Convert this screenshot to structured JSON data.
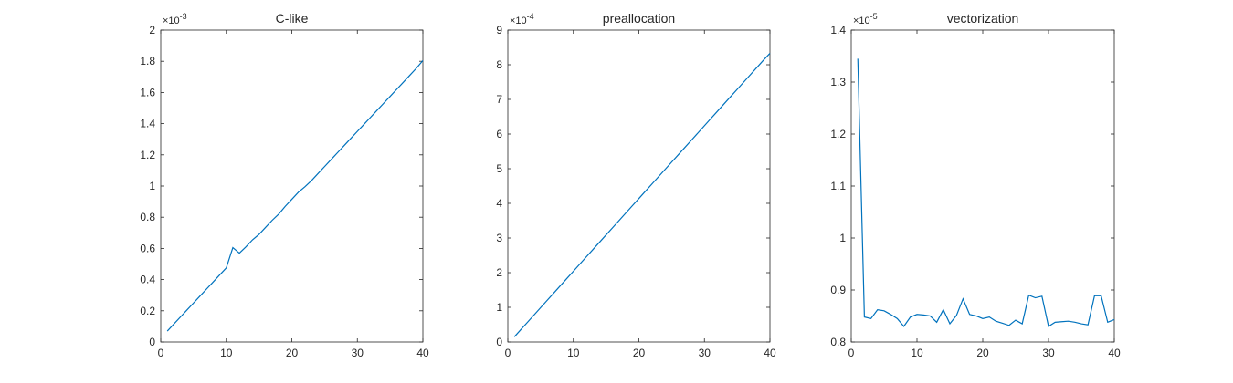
{
  "line_color": "#0072BD",
  "chart_data": [
    {
      "type": "line",
      "title": "C-like",
      "xlabel": "",
      "ylabel": "",
      "xlim": [
        0,
        40
      ],
      "ylim": [
        0,
        2
      ],
      "xticks": [
        0,
        10,
        20,
        30,
        40
      ],
      "xtick_labels": [
        "0",
        "10",
        "20",
        "30",
        "40"
      ],
      "yticks": [
        0,
        0.2,
        0.4,
        0.6,
        0.8,
        1,
        1.2,
        1.4,
        1.6,
        1.8,
        2
      ],
      "ytick_labels": [
        "0",
        "0.2",
        "0.4",
        "0.6",
        "0.8",
        "1",
        "1.2",
        "1.4",
        "1.6",
        "1.8",
        "2"
      ],
      "y_exponent_base": "×10",
      "y_exponent_power": "-3",
      "grid": false,
      "x": [
        1,
        2,
        3,
        4,
        5,
        6,
        7,
        8,
        9,
        10,
        11,
        12,
        13,
        14,
        15,
        16,
        17,
        18,
        19,
        20,
        21,
        22,
        23,
        24,
        25,
        26,
        27,
        28,
        29,
        30,
        31,
        32,
        33,
        34,
        35,
        36,
        37,
        38,
        39,
        40
      ],
      "values": [
        0.07,
        0.115,
        0.16,
        0.205,
        0.25,
        0.295,
        0.34,
        0.385,
        0.43,
        0.475,
        0.605,
        0.57,
        0.61,
        0.655,
        0.69,
        0.735,
        0.78,
        0.82,
        0.87,
        0.915,
        0.96,
        0.995,
        1.035,
        1.08,
        1.125,
        1.17,
        1.215,
        1.26,
        1.305,
        1.35,
        1.395,
        1.44,
        1.485,
        1.53,
        1.575,
        1.62,
        1.665,
        1.71,
        1.755,
        1.805
      ]
    },
    {
      "type": "line",
      "title": "preallocation",
      "xlabel": "",
      "ylabel": "",
      "xlim": [
        0,
        40
      ],
      "ylim": [
        0,
        9
      ],
      "xticks": [
        0,
        10,
        20,
        30,
        40
      ],
      "xtick_labels": [
        "0",
        "10",
        "20",
        "30",
        "40"
      ],
      "yticks": [
        0,
        1,
        2,
        3,
        4,
        5,
        6,
        7,
        8,
        9
      ],
      "ytick_labels": [
        "0",
        "1",
        "2",
        "3",
        "4",
        "5",
        "6",
        "7",
        "8",
        "9"
      ],
      "y_exponent_base": "×10",
      "y_exponent_power": "-4",
      "grid": false,
      "x": [
        1,
        2,
        3,
        4,
        5,
        6,
        7,
        8,
        9,
        10,
        11,
        12,
        13,
        14,
        15,
        16,
        17,
        18,
        19,
        20,
        21,
        22,
        23,
        24,
        25,
        26,
        27,
        28,
        29,
        30,
        31,
        32,
        33,
        34,
        35,
        36,
        37,
        38,
        39,
        40
      ],
      "values": [
        0.15,
        0.36,
        0.57,
        0.78,
        0.99,
        1.2,
        1.41,
        1.62,
        1.83,
        2.04,
        2.25,
        2.46,
        2.67,
        2.88,
        3.09,
        3.3,
        3.51,
        3.72,
        3.93,
        4.14,
        4.35,
        4.56,
        4.77,
        4.98,
        5.19,
        5.4,
        5.61,
        5.82,
        6.03,
        6.24,
        6.45,
        6.66,
        6.87,
        7.08,
        7.29,
        7.5,
        7.71,
        7.92,
        8.13,
        8.33
      ]
    },
    {
      "type": "line",
      "title": "vectorization",
      "xlabel": "",
      "ylabel": "",
      "xlim": [
        0,
        40
      ],
      "ylim": [
        0.8,
        1.4
      ],
      "xticks": [
        0,
        10,
        20,
        30,
        40
      ],
      "xtick_labels": [
        "0",
        "10",
        "20",
        "30",
        "40"
      ],
      "yticks": [
        0.8,
        0.9,
        1,
        1.1,
        1.2,
        1.3,
        1.4
      ],
      "ytick_labels": [
        "0.8",
        "0.9",
        "1",
        "1.1",
        "1.2",
        "1.3",
        "1.4"
      ],
      "y_exponent_base": "×10",
      "y_exponent_power": "-5",
      "grid": false,
      "x": [
        1,
        2,
        3,
        4,
        5,
        6,
        7,
        8,
        9,
        10,
        11,
        12,
        13,
        14,
        15,
        16,
        17,
        18,
        19,
        20,
        21,
        22,
        23,
        24,
        25,
        26,
        27,
        28,
        29,
        30,
        31,
        32,
        33,
        34,
        35,
        36,
        37,
        38,
        39,
        40
      ],
      "values": [
        1.345,
        0.848,
        0.845,
        0.862,
        0.86,
        0.853,
        0.845,
        0.83,
        0.848,
        0.853,
        0.852,
        0.85,
        0.838,
        0.862,
        0.835,
        0.851,
        0.883,
        0.853,
        0.85,
        0.845,
        0.848,
        0.84,
        0.836,
        0.832,
        0.842,
        0.835,
        0.89,
        0.885,
        0.888,
        0.83,
        0.838,
        0.839,
        0.84,
        0.838,
        0.835,
        0.833,
        0.889,
        0.889,
        0.838,
        0.843
      ]
    }
  ]
}
